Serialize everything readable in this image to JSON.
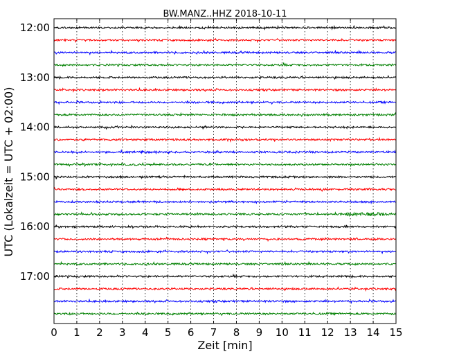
{
  "chart_data": {
    "type": "line",
    "title": "BW.MANZ..HHZ 2018-10-11",
    "xlabel": "Zeit  [min]",
    "ylabel": "UTC (Lokalzeit = UTC + 02:00)",
    "xlim": [
      0,
      15
    ],
    "x_ticks": [
      "0",
      "1",
      "2",
      "3",
      "4",
      "5",
      "6",
      "7",
      "8",
      "9",
      "10",
      "11",
      "12",
      "13",
      "14",
      "15"
    ],
    "y_ticks": [
      "12:00",
      "13:00",
      "14:00",
      "15:00",
      "16:00",
      "17:00"
    ],
    "y_tick_rows": [
      0,
      4,
      8,
      12,
      16,
      20
    ],
    "row_start_times": [
      "12:00",
      "12:15",
      "12:30",
      "12:45",
      "13:00",
      "13:15",
      "13:30",
      "13:45",
      "14:00",
      "14:15",
      "14:30",
      "14:45",
      "15:00",
      "15:15",
      "15:30",
      "15:45",
      "16:00",
      "16:15",
      "16:30",
      "16:45",
      "17:00",
      "17:15",
      "17:30",
      "17:45"
    ],
    "row_minutes": 15,
    "series_colors": [
      "#000000",
      "#ff0000",
      "#0000ff",
      "#008000"
    ],
    "vertical_grid": "dotted",
    "rows": 24
  }
}
